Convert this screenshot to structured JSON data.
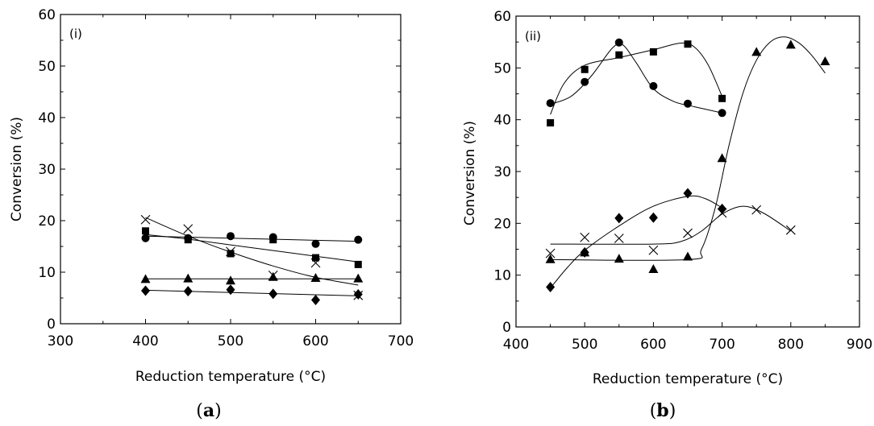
{
  "chart_data": [
    {
      "type": "scatter",
      "panel_label": "(i)",
      "caption_letter": "a",
      "xlabel": "Reduction temperature (°C)",
      "ylabel": "Conversion (%)",
      "xlim": [
        300,
        700
      ],
      "ylim": [
        0,
        60
      ],
      "xticks": [
        "300",
        "400",
        "500",
        "600",
        "700"
      ],
      "yticks": [
        "0",
        "10",
        "20",
        "30",
        "40",
        "50",
        "60"
      ],
      "series": [
        {
          "name": "circle",
          "marker": "circle",
          "x": [
            400,
            450,
            500,
            550,
            600,
            650
          ],
          "y": [
            16.6,
            16.6,
            17.0,
            16.8,
            15.5,
            16.3
          ],
          "fit_x": [
            400,
            650
          ],
          "fit_y": [
            17.0,
            16.0
          ]
        },
        {
          "name": "square",
          "marker": "square",
          "x": [
            400,
            450,
            500,
            550,
            600,
            650
          ],
          "y": [
            18.0,
            16.3,
            13.6,
            16.3,
            12.8,
            11.5
          ],
          "fit_x": [
            400,
            450,
            500,
            550,
            600,
            650
          ],
          "fit_y": [
            17.3,
            16.4,
            15.3,
            14.2,
            13.1,
            12.0
          ]
        },
        {
          "name": "cross",
          "marker": "x",
          "x": [
            400,
            450,
            500,
            550,
            600,
            650
          ],
          "y": [
            20.2,
            18.4,
            14.0,
            9.4,
            11.8,
            5.5
          ],
          "fit_x": [
            400,
            450,
            500,
            550,
            600,
            650
          ],
          "fit_y": [
            20.6,
            17.0,
            13.9,
            11.2,
            9.0,
            7.5
          ]
        },
        {
          "name": "triangle",
          "marker": "triangle",
          "x": [
            400,
            450,
            500,
            550,
            600,
            650
          ],
          "y": [
            8.7,
            8.8,
            8.4,
            9.1,
            8.9,
            8.8
          ],
          "fit_x": [
            400,
            650
          ],
          "fit_y": [
            8.7,
            8.7
          ]
        },
        {
          "name": "diamond",
          "marker": "diamond",
          "x": [
            400,
            450,
            500,
            550,
            600,
            650
          ],
          "y": [
            6.4,
            6.3,
            6.6,
            5.8,
            4.6,
            5.7
          ],
          "fit_x": [
            400,
            650
          ],
          "fit_y": [
            6.5,
            5.4
          ]
        }
      ]
    },
    {
      "type": "scatter",
      "panel_label": "(ii)",
      "caption_letter": "b",
      "xlabel": "Reduction temperature (°C)",
      "ylabel": "Conversion (%)",
      "xlim": [
        400,
        900
      ],
      "ylim": [
        0,
        60
      ],
      "xticks": [
        "400",
        "500",
        "600",
        "700",
        "800",
        "900"
      ],
      "yticks": [
        "0",
        "10",
        "20",
        "30",
        "40",
        "50",
        "60"
      ],
      "series": [
        {
          "name": "circle",
          "marker": "circle",
          "x": [
            450,
            500,
            550,
            600,
            650,
            700
          ],
          "y": [
            43.2,
            47.3,
            54.9,
            46.5,
            43.1,
            41.3
          ],
          "fit_x": [
            450,
            480,
            510,
            540,
            555,
            575,
            600,
            630,
            660,
            700
          ],
          "fit_y": [
            43.0,
            44.5,
            48.5,
            53.8,
            54.5,
            51.0,
            46.0,
            43.5,
            42.5,
            41.3
          ]
        },
        {
          "name": "square",
          "marker": "square",
          "x": [
            450,
            500,
            550,
            600,
            650,
            700
          ],
          "y": [
            39.4,
            49.7,
            52.5,
            53.1,
            54.6,
            44.1
          ],
          "fit_x": [
            450,
            470,
            500,
            550,
            600,
            640,
            660,
            680,
            700
          ],
          "fit_y": [
            41.0,
            47.0,
            50.5,
            52.0,
            53.5,
            54.8,
            54.0,
            50.5,
            44.5
          ]
        },
        {
          "name": "triangle",
          "marker": "triangle",
          "x": [
            450,
            500,
            550,
            600,
            650,
            700,
            750,
            800,
            850
          ],
          "y": [
            13.1,
            14.4,
            13.2,
            11.2,
            13.6,
            32.6,
            53.1,
            54.5,
            51.3
          ],
          "fit_x": [
            450,
            650,
            670,
            690,
            710,
            730,
            750,
            770,
            790,
            810,
            830,
            850
          ],
          "fit_y": [
            13.0,
            13.0,
            15.0,
            23.0,
            35.0,
            45.0,
            51.5,
            55.0,
            56.0,
            55.0,
            52.5,
            49.0
          ]
        },
        {
          "name": "diamond",
          "marker": "diamond",
          "x": [
            450,
            500,
            550,
            600,
            650,
            700
          ],
          "y": [
            7.7,
            14.4,
            21.0,
            21.1,
            25.8,
            22.8
          ],
          "fit_x": [
            450,
            475,
            500,
            550,
            600,
            650,
            675,
            700
          ],
          "fit_y": [
            7.5,
            11.5,
            14.8,
            19.5,
            23.3,
            25.2,
            24.8,
            23.0
          ]
        },
        {
          "name": "cross",
          "marker": "x",
          "x": [
            450,
            500,
            550,
            600,
            650,
            700,
            750,
            800
          ],
          "y": [
            14.2,
            17.3,
            17.1,
            14.8,
            18.1,
            22.0,
            22.6,
            18.7
          ],
          "fit_x": [
            450,
            600,
            640,
            670,
            700,
            730,
            760,
            800
          ],
          "fit_y": [
            16.0,
            16.0,
            16.5,
            18.5,
            21.8,
            23.3,
            22.0,
            18.5
          ]
        }
      ]
    }
  ]
}
